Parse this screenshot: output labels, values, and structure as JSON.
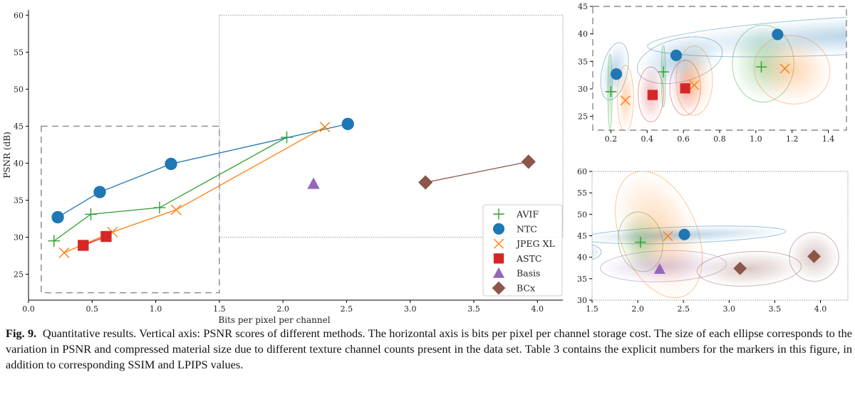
{
  "caption": {
    "label": "Fig. 9.",
    "text": "Quantitative results. Vertical axis: PSNR scores of different methods. The horizontal axis is bits per pixel per channel storage cost. The size of each ellipse corresponds to the variation in PSNR and compressed material size due to different texture channel counts present in the data set. Table 3 contains the explicit numbers for the markers in this figure, in addition to corresponding SSIM and LPIPS values."
  },
  "chart_data": [
    {
      "type": "line",
      "panel": "main",
      "xlabel": "Bits per pixel per channel",
      "ylabel": "PSNR (dB)",
      "xlim": [
        0,
        4.2
      ],
      "ylim": [
        21.5,
        60.7
      ],
      "xticks": [
        "0.0",
        "0.5",
        "1.0",
        "1.5",
        "2.0",
        "2.5",
        "3.0",
        "3.5",
        "4.0"
      ],
      "yticks": [
        "25",
        "30",
        "35",
        "40",
        "45",
        "50",
        "55",
        "60"
      ],
      "grid": false,
      "legend": "bottom-right",
      "zoom_regions": [
        {
          "style": "dashed",
          "x": [
            0.1,
            1.5
          ],
          "y": [
            22.5,
            45
          ]
        },
        {
          "style": "dotted",
          "x": [
            1.5,
            4.2
          ],
          "y": [
            30,
            60
          ]
        }
      ],
      "series": [
        {
          "name": "AVIF",
          "marker": "plus",
          "color": "#2ca02c",
          "x": [
            0.2,
            0.49,
            1.03,
            2.03
          ],
          "y": [
            29.5,
            33.1,
            34.0,
            43.5
          ]
        },
        {
          "name": "NTC",
          "marker": "circle",
          "color": "#1f77b4",
          "x": [
            0.23,
            0.56,
            1.12,
            2.51
          ],
          "y": [
            32.7,
            36.1,
            39.9,
            45.3
          ]
        },
        {
          "name": "JPEG XL",
          "marker": "x",
          "color": "#ff7f0e",
          "x": [
            0.28,
            0.66,
            1.16,
            2.33
          ],
          "y": [
            27.9,
            30.7,
            33.7,
            44.9
          ]
        },
        {
          "name": "ASTC",
          "marker": "square",
          "color": "#d62728",
          "x": [
            0.43,
            0.61
          ],
          "y": [
            28.9,
            30.1
          ]
        },
        {
          "name": "Basis",
          "marker": "triangle",
          "color": "#9467bd",
          "x": [
            2.24
          ],
          "y": [
            37.2
          ]
        },
        {
          "name": "BCx",
          "marker": "diamond",
          "color": "#8c564b",
          "x": [
            3.12,
            3.93
          ],
          "y": [
            37.4,
            40.2
          ]
        }
      ]
    },
    {
      "type": "scatter",
      "panel": "inset-top",
      "xlim": [
        0.1,
        1.5
      ],
      "ylim": [
        22.5,
        45
      ],
      "xticks": [
        "0.2",
        "0.4",
        "0.6",
        "0.8",
        "1.0",
        "1.2",
        "1.4"
      ],
      "yticks": [
        "25",
        "30",
        "35",
        "40",
        "45"
      ],
      "frame": "dashed",
      "ellipses": [
        {
          "series": "NTC",
          "cx": 0.22,
          "cy": 33.2,
          "rx": 0.07,
          "ry": 5.3,
          "angle": 12
        },
        {
          "series": "AVIF",
          "cx": 0.195,
          "cy": 29.5,
          "rx": 0.012,
          "ry": 6.8,
          "angle": 0
        },
        {
          "series": "JPEG XL",
          "cx": 0.28,
          "cy": 28.3,
          "rx": 0.045,
          "ry": 6.0,
          "angle": 0
        },
        {
          "series": "NTC",
          "cx": 0.58,
          "cy": 35.2,
          "rx": 0.24,
          "ry": 3.9,
          "angle": -14
        },
        {
          "series": "AVIF",
          "cx": 0.49,
          "cy": 32.3,
          "rx": 0.012,
          "ry": 5.6,
          "angle": 0
        },
        {
          "series": "ASTC",
          "cx": 0.42,
          "cy": 29.0,
          "rx": 0.07,
          "ry": 5.0,
          "angle": 0
        },
        {
          "series": "ASTC",
          "cx": 0.61,
          "cy": 30.2,
          "rx": 0.085,
          "ry": 5.0,
          "angle": 0
        },
        {
          "series": "JPEG XL",
          "cx": 0.66,
          "cy": 31.5,
          "rx": 0.1,
          "ry": 6.3,
          "angle": 0
        },
        {
          "series": "NTC",
          "cx": 1.6,
          "cy": 39.8,
          "rx": 1.2,
          "ry": 3.4,
          "angle": -3
        },
        {
          "series": "AVIF",
          "cx": 1.04,
          "cy": 34.6,
          "rx": 0.17,
          "ry": 7.0,
          "angle": 0
        },
        {
          "series": "JPEG XL",
          "cx": 1.2,
          "cy": 33.5,
          "rx": 0.21,
          "ry": 6.2,
          "angle": 14
        }
      ]
    },
    {
      "type": "scatter",
      "panel": "inset-bottom",
      "xlim": [
        1.5,
        4.3
      ],
      "ylim": [
        30,
        60
      ],
      "xticks": [
        "1.5",
        "2.0",
        "2.5",
        "3.0",
        "3.5",
        "4.0"
      ],
      "yticks": [
        "30",
        "35",
        "40",
        "45",
        "50",
        "55",
        "60"
      ],
      "frame": "dotted",
      "ellipses": [
        {
          "series": "JPEG XL",
          "cx": 2.23,
          "cy": 45.3,
          "rx": 0.42,
          "ry": 15.5,
          "angle": -22
        },
        {
          "series": "AVIF",
          "cx": 2.03,
          "cy": 43.6,
          "rx": 0.24,
          "ry": 7.0,
          "angle": -10
        },
        {
          "series": "NTC",
          "cx": 2.5,
          "cy": 45.2,
          "rx": 1.12,
          "ry": 1.9,
          "angle": -2
        },
        {
          "series": "NTC",
          "cx": 1.4,
          "cy": 41.2,
          "rx": 0.2,
          "ry": 2.0,
          "angle": 0
        },
        {
          "series": "Basis",
          "cx": 2.28,
          "cy": 37.9,
          "rx": 0.69,
          "ry": 3.6,
          "angle": -2
        },
        {
          "series": "BCx",
          "cx": 3.22,
          "cy": 37.3,
          "rx": 0.57,
          "ry": 4.0,
          "angle": -3
        },
        {
          "series": "BCx",
          "cx": 3.93,
          "cy": 40.1,
          "rx": 0.27,
          "ry": 5.7,
          "angle": 0
        }
      ]
    }
  ]
}
